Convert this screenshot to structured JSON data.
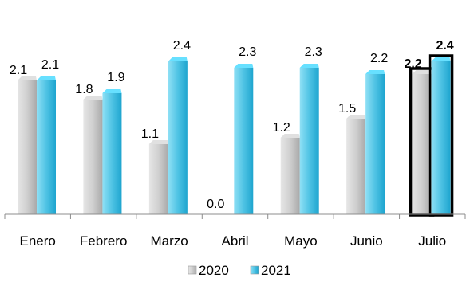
{
  "chart_data": {
    "type": "bar",
    "categories": [
      "Enero",
      "Febrero",
      "Marzo",
      "Abril",
      "Mayo",
      "Junio",
      "Julio"
    ],
    "series": [
      {
        "name": "2020",
        "values": [
          2.1,
          1.8,
          1.1,
          0.0,
          1.2,
          1.5,
          2.2
        ],
        "labels": [
          "2.1",
          "1.8",
          "1.1",
          "0.0",
          "1.2",
          "1.5",
          "2.2"
        ]
      },
      {
        "name": "2021",
        "values": [
          2.1,
          1.9,
          2.4,
          2.3,
          2.3,
          2.2,
          2.4
        ],
        "labels": [
          "2.1",
          "1.9",
          "2.4",
          "2.3",
          "2.3",
          "2.2",
          "2.4"
        ]
      }
    ],
    "highlight_category": "Julio",
    "ylim": [
      0,
      2.4
    ],
    "grid": false,
    "legend_position": "bottom-center",
    "colors": {
      "2020": "#c8c8c8",
      "2021": "#5cc8e6",
      "highlight_outline": "#000000"
    }
  }
}
